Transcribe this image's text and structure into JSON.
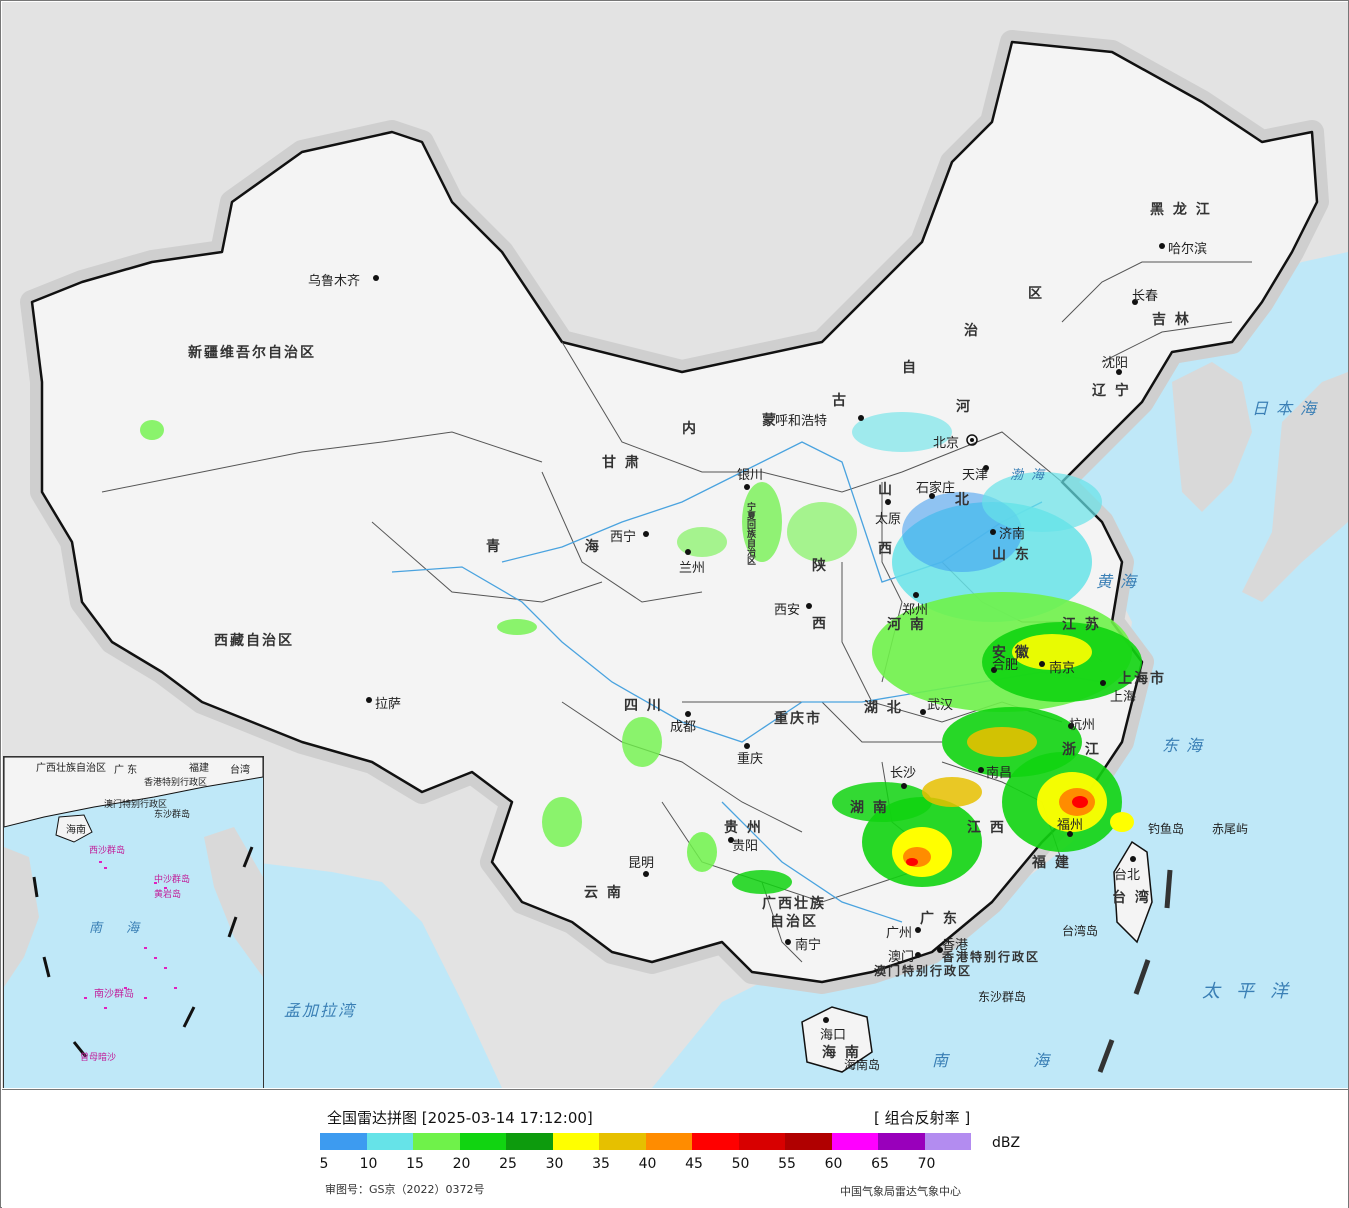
{
  "legend": {
    "title": "全国雷达拼图 [2025-03-14 17:12:00]",
    "product": "[ 组合反射率 ]",
    "unit": "dBZ",
    "ticks": [
      "5",
      "10",
      "15",
      "20",
      "25",
      "30",
      "35",
      "40",
      "45",
      "50",
      "55",
      "60",
      "65",
      "70"
    ],
    "colors": [
      "#3d9bf0",
      "#66e3e8",
      "#6ff24a",
      "#11d411",
      "#0d9b0d",
      "#ffff00",
      "#e6c000",
      "#ff8c00",
      "#ff0000",
      "#d80000",
      "#b00000",
      "#ff00ff",
      "#9900bb",
      "#b38cf0"
    ],
    "approval": "审图号：GS京（2022）0372号",
    "source": "中国气象局雷达气象中心"
  },
  "provinces": {
    "xinjiang": "新疆维吾尔自治区",
    "xizang": "西藏自治区",
    "qinghai": "青 海",
    "gansu": "甘 肃",
    "neimenggu_nei": "内",
    "neimenggu_meng": "蒙",
    "neimenggu_gu": "古",
    "neimenggu_zi": "自",
    "neimenggu_zhi": "治",
    "neimenggu_qu": "区",
    "heilongjiang": "黑 龙 江",
    "jilin": "吉 林",
    "liaoning": "辽 宁",
    "hebei_he": "河",
    "hebei_bei": "北",
    "shanxi_shan": "山",
    "shanxi_xi": "西",
    "shandong": "山 东",
    "henan": "河 南",
    "shaanxi_shan": "陕",
    "shaanxi_xi": "西",
    "sichuan": "四 川",
    "chongqing": "重庆市",
    "hubei": "湖 北",
    "anhui": "安 徽",
    "jiangsu": "江 苏",
    "shanghai": "上海市",
    "zhejiang": "浙 江",
    "jiangxi": "江 西",
    "hunan": "湖 南",
    "guizhou": "贵 州",
    "yunnan": "云 南",
    "guangxi1": "广西壮族",
    "guangxi2": "自治区",
    "guangdong": "广 东",
    "fujian": "福 建",
    "hainan": "海 南",
    "taiwan": "台 湾",
    "hk": "香港特别行政区",
    "macau": "澳门特别行政区",
    "ningxia": "宁夏回族自治区"
  },
  "cities": {
    "urumqi": "乌鲁木齐",
    "lhasa": "拉萨",
    "xining": "西宁",
    "lanzhou": "兰州",
    "yinchuan": "银川",
    "hohhot": "呼和浩特",
    "beijing": "北京",
    "tianjin": "天津",
    "shijiazhuang": "石家庄",
    "taiyuan": "太原",
    "jinan": "济南",
    "zhengzhou": "郑州",
    "xian": "西安",
    "chengdu": "成都",
    "chongqing": "重庆",
    "wuhan": "武汉",
    "hefei": "合肥",
    "nanjing": "南京",
    "shanghai": "上海",
    "hangzhou": "杭州",
    "nanchang": "南昌",
    "changsha": "长沙",
    "fuzhou": "福州",
    "guiyang": "贵阳",
    "kunming": "昆明",
    "nanning": "南宁",
    "guangzhou": "广州",
    "hongkong": "香港",
    "macau": "澳门",
    "haikou": "海口",
    "taipei": "台北",
    "shenyang": "沈阳",
    "changchun": "长春",
    "harbin": "哈尔滨"
  },
  "seas": {
    "japan_sea": "日本海",
    "bohai": "渤海",
    "yellow_sea": "黄海",
    "east_sea": "东海",
    "pacific": "太平洋",
    "south_sea": "南 海",
    "bengal": "孟加拉湾"
  },
  "islands": {
    "diaoyu": "钓鱼岛",
    "chiwei": "赤尾屿",
    "taiwan_island": "台湾岛",
    "dongsha": "东沙群岛",
    "hainan_island": "海南岛"
  },
  "inset": {
    "guangxi": "广西壮族自治区",
    "guangdong": "广 东",
    "fujian": "福建",
    "taiwan": "台湾",
    "hk": "香港特别行政区",
    "macau": "澳门特别行政区",
    "dongsha": "东沙群岛",
    "hainan": "海南",
    "xisha": "西沙群岛",
    "zhongsha": "中沙群岛",
    "huangyan": "黄岩岛",
    "south_sea": "南 海",
    "nansha": "南沙群岛",
    "zengmu": "曾母暗沙"
  }
}
